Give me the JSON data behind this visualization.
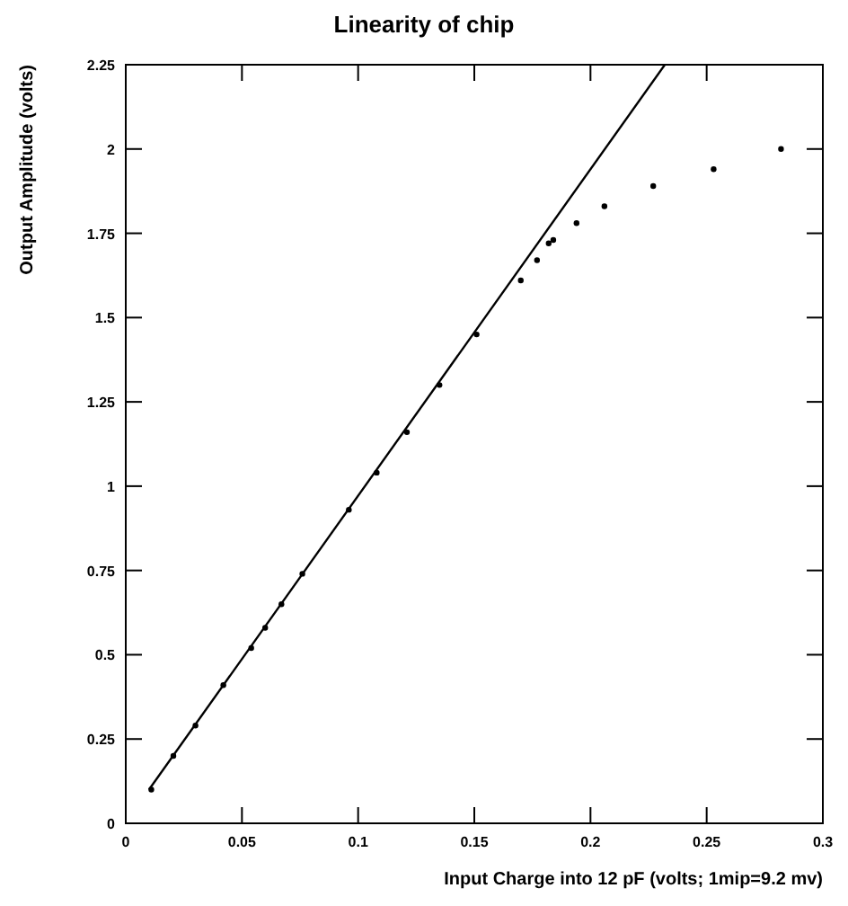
{
  "chart_data": {
    "type": "scatter",
    "title": "Linearity of chip",
    "xlabel": "Input Charge into 12 pF (volts; 1mip=9.2 mv)",
    "ylabel": "Output Amplitude (volts)",
    "xlim": [
      0,
      0.3
    ],
    "ylim": [
      0,
      2.25
    ],
    "xticks": [
      0,
      0.05,
      0.1,
      0.15,
      0.2,
      0.25,
      0.3
    ],
    "yticks": [
      0,
      0.25,
      0.5,
      0.75,
      1,
      1.25,
      1.5,
      1.75,
      2,
      2.25
    ],
    "grid": false,
    "series": [
      {
        "marker": "circle",
        "color": "#000000",
        "x": [
          0.011,
          0.0205,
          0.03,
          0.042,
          0.054,
          0.06,
          0.067,
          0.076,
          0.096,
          0.108,
          0.121,
          0.135,
          0.151,
          0.17,
          0.177,
          0.182,
          0.184,
          0.194,
          0.206,
          0.227,
          0.253,
          0.282
        ],
        "values": [
          0.1,
          0.2,
          0.29,
          0.41,
          0.52,
          0.58,
          0.65,
          0.74,
          0.93,
          1.04,
          1.16,
          1.3,
          1.45,
          1.61,
          1.67,
          1.72,
          1.73,
          1.78,
          1.83,
          1.89,
          1.94,
          2.0
        ]
      },
      {
        "type": "line",
        "color": "#000000",
        "x": [
          0.01,
          0.232
        ],
        "values": [
          0.1,
          2.25
        ]
      }
    ]
  }
}
